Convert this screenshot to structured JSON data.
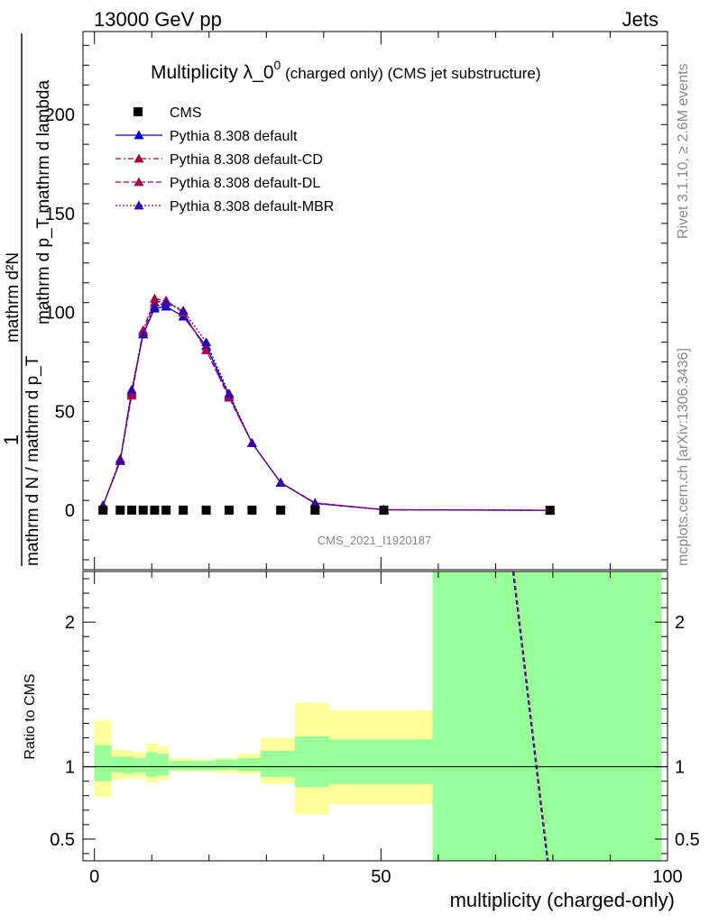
{
  "header": {
    "energy_label": "13000 GeV pp",
    "category_label": "Jets"
  },
  "title": {
    "main": "Multiplicity λ_0",
    "sup": "0",
    "detail": " (charged only) (CMS jet substructure)"
  },
  "side_labels": {
    "rivet": "Rivet 3.1.10, ≥ 2.6M events",
    "mcplots": "mcplots.cern.ch [arXiv:1306.3436]"
  },
  "watermark": "CMS_2021_I1920187",
  "main_ylabel": {
    "numerator": "mathrm d²N",
    "denominator": "mathrm d p_T mathrm d lambda",
    "one": "1",
    "prefactor": "mathrm d N / mathrm d p_T"
  },
  "ratio_ylabel": "Ratio to CMS",
  "xlabel": "multiplicity (charged-only)",
  "chart_data": {
    "type": "line",
    "main": {
      "xlim": [
        -2,
        100
      ],
      "ylim": [
        -30,
        242
      ],
      "yticks": [
        0,
        50,
        100,
        150,
        200
      ],
      "ytick_labels": [
        "0",
        "50",
        "100",
        "150",
        "200"
      ]
    },
    "ratio": {
      "xlim": [
        -2,
        100
      ],
      "ylim": [
        0.35,
        2.35
      ],
      "yticks": [
        0.5,
        1,
        2
      ],
      "ytick_labels": [
        "0.5",
        "1",
        "2"
      ],
      "reference": 1
    },
    "xticks": [
      0,
      50,
      100
    ],
    "xtick_labels": [
      "0",
      "50",
      "100"
    ],
    "legend": {
      "placement": "top-left",
      "entries": [
        {
          "label": "CMS",
          "color": "#000000",
          "marker": "square",
          "dash": "none"
        },
        {
          "label": "Pythia 8.308 default",
          "color": "#0000dd",
          "marker": "triangle",
          "dash": "solid"
        },
        {
          "label": "Pythia 8.308 default-CD",
          "color": "#aa0033",
          "marker": "triangle",
          "dash": "dashdot"
        },
        {
          "label": "Pythia 8.308 default-DL",
          "color": "#aa0055",
          "marker": "triangle",
          "dash": "dash"
        },
        {
          "label": "Pythia 8.308 default-MBR",
          "color": "#3300aa",
          "marker": "triangle",
          "dash": "dot"
        }
      ]
    },
    "data": {
      "name": "CMS",
      "x": [
        1.5,
        4.5,
        6.5,
        8.5,
        10.5,
        12.5,
        15.5,
        19.5,
        23.5,
        27.5,
        32.5,
        38.5,
        50.5,
        79.5
      ],
      "y": [
        0.1,
        0.1,
        0.1,
        0.1,
        0.1,
        0.1,
        0.1,
        0.1,
        0.1,
        0.1,
        0.1,
        0.1,
        0.05,
        0.01
      ]
    },
    "series": [
      {
        "name": "Pythia 8.308 default",
        "color": "#0000dd",
        "dash": "solid",
        "x": [
          1.5,
          4.5,
          6.5,
          8.5,
          10.5,
          12.5,
          15.5,
          19.5,
          23.5,
          27.5,
          32.5,
          38.5,
          50.5,
          79.5
        ],
        "y": [
          2.5,
          25,
          60,
          89,
          102,
          103,
          98,
          83,
          58,
          34,
          14,
          3.5,
          0.3,
          0.0
        ]
      },
      {
        "name": "Pythia 8.308 default-CD",
        "color": "#aa0033",
        "dash": "dashdot",
        "x": [
          1.5,
          4.5,
          6.5,
          8.5,
          10.5,
          12.5,
          15.5,
          19.5,
          23.5,
          27.5,
          32.5,
          38.5,
          50.5,
          79.5
        ],
        "y": [
          2.5,
          26,
          59,
          91,
          107,
          106,
          100,
          81,
          57,
          34,
          14,
          3.8,
          0.3,
          0.0
        ]
      },
      {
        "name": "Pythia 8.308 default-DL",
        "color": "#aa0055",
        "dash": "dash",
        "x": [
          1.5,
          4.5,
          6.5,
          8.5,
          10.5,
          12.5,
          15.5,
          19.5,
          23.5,
          27.5,
          32.5,
          38.5,
          50.5,
          79.5
        ],
        "y": [
          2.5,
          25,
          58,
          90,
          105,
          106,
          100,
          81,
          57,
          34,
          14,
          3.7,
          0.3,
          0.0
        ]
      },
      {
        "name": "Pythia 8.308 default-MBR",
        "color": "#3300aa",
        "dash": "dot",
        "x": [
          1.5,
          4.5,
          6.5,
          8.5,
          10.5,
          12.5,
          15.5,
          19.5,
          23.5,
          27.5,
          32.5,
          38.5,
          50.5,
          79.5
        ],
        "y": [
          2.5,
          25,
          61,
          89,
          103,
          105,
          101,
          85,
          59,
          34,
          14,
          3.5,
          0.3,
          0.0
        ]
      }
    ],
    "uncertainty_bands": {
      "bins": [
        [
          0,
          3
        ],
        [
          3,
          5
        ],
        [
          5,
          7
        ],
        [
          7,
          9
        ],
        [
          9,
          11
        ],
        [
          11,
          13
        ],
        [
          13,
          17
        ],
        [
          17,
          21
        ],
        [
          21,
          25
        ],
        [
          25,
          29
        ],
        [
          29,
          35
        ],
        [
          35,
          41
        ],
        [
          41,
          59
        ],
        [
          59,
          99
        ]
      ],
      "inner": [
        [
          0.9,
          1.15
        ],
        [
          0.96,
          1.07
        ],
        [
          0.95,
          1.07
        ],
        [
          0.96,
          1.06
        ],
        [
          0.93,
          1.1
        ],
        [
          0.94,
          1.09
        ],
        [
          0.98,
          1.04
        ],
        [
          0.98,
          1.04
        ],
        [
          0.98,
          1.05
        ],
        [
          0.97,
          1.06
        ],
        [
          0.93,
          1.11
        ],
        [
          0.86,
          1.21
        ],
        [
          0.88,
          1.19
        ],
        [
          0.35,
          2.35
        ]
      ],
      "outer": [
        [
          0.79,
          1.32
        ],
        [
          0.91,
          1.12
        ],
        [
          0.92,
          1.11
        ],
        [
          0.92,
          1.1
        ],
        [
          0.89,
          1.16
        ],
        [
          0.91,
          1.14
        ],
        [
          0.97,
          1.06
        ],
        [
          0.97,
          1.05
        ],
        [
          0.96,
          1.06
        ],
        [
          0.95,
          1.09
        ],
        [
          0.88,
          1.2
        ],
        [
          0.67,
          1.44
        ],
        [
          0.74,
          1.39
        ],
        [
          0.35,
          2.35
        ]
      ],
      "inner_color": "#99ff99",
      "outer_color": "#ffff99"
    },
    "ratio_lines": [
      {
        "name": "Pythia 8.308 default",
        "color": "#0000dd",
        "points": [
          [
            73.0,
            2.35
          ],
          [
            79.0,
            0.35
          ]
        ]
      },
      {
        "name": "Pythia 8.308 default-CD",
        "color": "#aa0033",
        "points": [
          [
            73.2,
            2.35
          ],
          [
            79.2,
            0.35
          ]
        ]
      }
    ]
  }
}
